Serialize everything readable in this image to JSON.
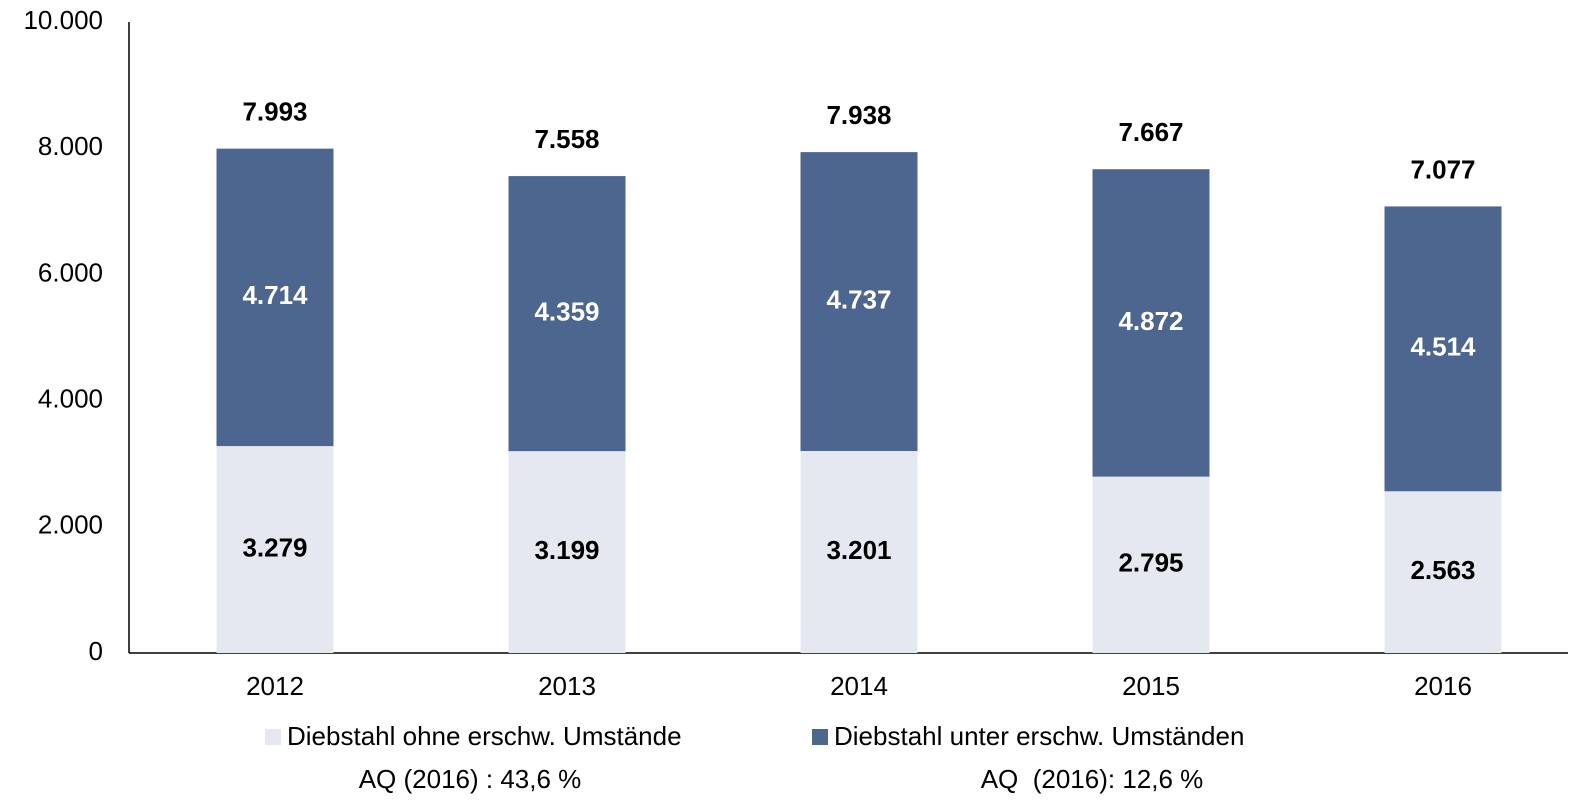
{
  "chart_data": {
    "type": "stacked_bar",
    "categories": [
      "2012",
      "2013",
      "2014",
      "2015",
      "2016"
    ],
    "series": [
      {
        "name": "Diebstahl ohne erschw. Umstände",
        "color": "#e6e8f1",
        "label_color": "#000000",
        "values": [
          3279,
          3199,
          3201,
          2795,
          2563
        ],
        "value_labels": [
          "3.279",
          "3.199",
          "3.201",
          "2.795",
          "2.563"
        ]
      },
      {
        "name": "Diebstahl unter erschw. Umständen",
        "color": "#4d6690",
        "label_color": "#ffffff",
        "values": [
          4714,
          4359,
          4737,
          4872,
          4514
        ],
        "value_labels": [
          "4.714",
          "4.359",
          "4.737",
          "4.872",
          "4.514"
        ]
      }
    ],
    "totals": {
      "values": [
        7993,
        7558,
        7938,
        7667,
        7077
      ],
      "value_labels": [
        "7.993",
        "7.558",
        "7.938",
        "7.667",
        "7.077"
      ]
    },
    "ylim": [
      0,
      10000
    ],
    "yticks": [
      0,
      {
        "value": 2000,
        "label": "2.000"
      },
      {
        "value": 4000,
        "label": "4.000"
      },
      {
        "value": 6000,
        "label": "6.000"
      },
      {
        "value": 8000,
        "label": "8.000"
      },
      {
        "value": 10000,
        "label": "10.000"
      }
    ],
    "grid": false,
    "legend": "bottom",
    "annotations": [
      "AQ (2016) : 43,6 %",
      "AQ  (2016): 12,6 %"
    ]
  }
}
